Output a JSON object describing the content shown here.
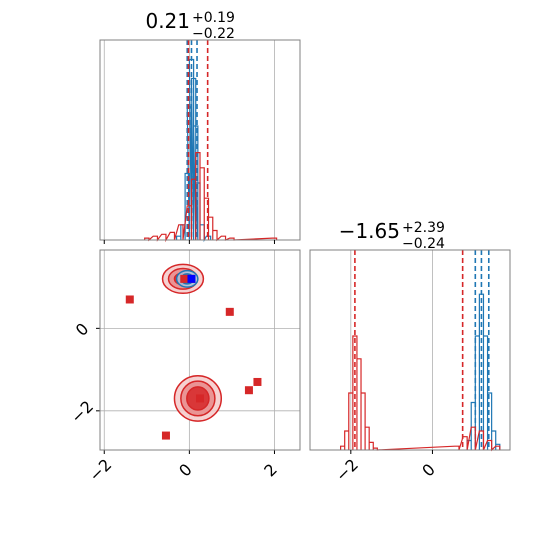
{
  "colors": {
    "red": "#d62728",
    "blue": "#1f77b4",
    "grid": "#b0b0b0",
    "axis": "#808080"
  },
  "chart_data": [
    {
      "type": "histogram",
      "panel": "param-1",
      "title": {
        "value": "0.21",
        "plus": "+0.19",
        "minus": "−0.22"
      },
      "xlim": [
        -2.1,
        2.6
      ],
      "xticks": [
        -2,
        0,
        2
      ],
      "grid": true,
      "series": [
        {
          "color": "#1f77b4",
          "bins": [
            [
              -0.25,
              0.02
            ],
            [
              -0.15,
              0.08
            ],
            [
              -0.05,
              0.35
            ],
            [
              0.0,
              0.7
            ],
            [
              0.05,
              0.95
            ],
            [
              0.1,
              0.85
            ],
            [
              0.15,
              0.6
            ],
            [
              0.2,
              0.3
            ],
            [
              0.3,
              0.08
            ],
            [
              0.45,
              0.02
            ]
          ],
          "quantile_lines": [
            -0.05,
            0.05,
            0.18
          ]
        },
        {
          "color": "#d62728",
          "bins": [
            [
              -1.0,
              0.01
            ],
            [
              -0.8,
              0.02
            ],
            [
              -0.6,
              0.03
            ],
            [
              -0.4,
              0.04
            ],
            [
              -0.2,
              0.08
            ],
            [
              0.0,
              0.18
            ],
            [
              0.1,
              0.32
            ],
            [
              0.2,
              0.46
            ],
            [
              0.3,
              0.38
            ],
            [
              0.4,
              0.22
            ],
            [
              0.5,
              0.12
            ],
            [
              0.6,
              0.05
            ],
            [
              0.8,
              0.02
            ],
            [
              1.0,
              0.01
            ],
            [
              2.0,
              0.01
            ]
          ],
          "quantile_lines": [
            -0.02,
            0.43
          ]
        }
      ]
    },
    {
      "type": "scatter",
      "panel": "param-1-vs-param-2",
      "xlim": [
        -2.1,
        2.6
      ],
      "ylim": [
        -2.95,
        1.9
      ],
      "xticks": [
        -2,
        0,
        2
      ],
      "yticks": [
        0,
        -2
      ],
      "grid": true,
      "red_squares": [
        [
          -1.4,
          0.7
        ],
        [
          0.95,
          0.4
        ],
        [
          1.6,
          -1.3
        ],
        [
          1.4,
          -1.5
        ],
        [
          0.25,
          -1.7
        ],
        [
          -0.55,
          -2.6
        ],
        [
          0.05,
          1.2
        ],
        [
          -0.12,
          1.2
        ]
      ],
      "blue_square": [
        0.05,
        1.2
      ],
      "contours": [
        {
          "center": [
            0.2,
            -1.7
          ],
          "radii": [
            [
              0.55,
              0.55
            ],
            [
              0.4,
              0.42
            ],
            [
              0.26,
              0.28
            ]
          ],
          "color": "#d62728"
        },
        {
          "center": [
            -0.15,
            1.2
          ],
          "radii": [
            [
              0.48,
              0.35
            ],
            [
              0.34,
              0.25
            ],
            [
              0.2,
              0.14
            ]
          ],
          "color": "#d62728"
        },
        {
          "center": [
            -0.05,
            1.2
          ],
          "radii": [
            [
              0.25,
              0.2
            ],
            [
              0.14,
              0.12
            ]
          ],
          "color": "#1f77b4"
        }
      ]
    },
    {
      "type": "histogram",
      "panel": "param-2",
      "title": {
        "value": "−1.65",
        "plus": "+2.39",
        "minus": "−0.24"
      },
      "xlim": [
        -3.0,
        1.9
      ],
      "xticks": [
        -2,
        0
      ],
      "grid": true,
      "series": [
        {
          "color": "#1f77b4",
          "bins": [
            [
              0.9,
              0.05
            ],
            [
              1.0,
              0.25
            ],
            [
              1.1,
              0.6
            ],
            [
              1.2,
              0.82
            ],
            [
              1.3,
              0.6
            ],
            [
              1.4,
              0.3
            ],
            [
              1.5,
              0.1
            ],
            [
              1.6,
              0.03
            ]
          ],
          "quantile_lines": [
            1.05,
            1.2,
            1.38
          ]
        },
        {
          "color": "#d62728",
          "bins": [
            [
              -2.2,
              0.02
            ],
            [
              -2.1,
              0.1
            ],
            [
              -2.0,
              0.3
            ],
            [
              -1.9,
              0.6
            ],
            [
              -1.8,
              0.48
            ],
            [
              -1.7,
              0.3
            ],
            [
              -1.6,
              0.12
            ],
            [
              -1.5,
              0.04
            ],
            [
              -1.4,
              0.01
            ],
            [
              0.6,
              0.02
            ],
            [
              0.8,
              0.07
            ],
            [
              1.0,
              0.12
            ],
            [
              1.2,
              0.1
            ],
            [
              1.4,
              0.05
            ],
            [
              1.6,
              0.02
            ]
          ],
          "quantile_lines": [
            -1.9,
            0.74
          ]
        }
      ]
    }
  ]
}
